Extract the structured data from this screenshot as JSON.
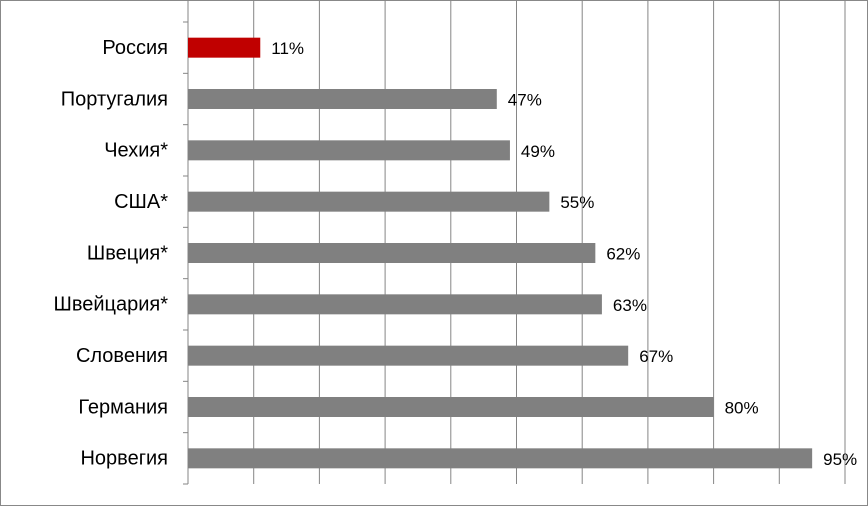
{
  "chart_data": {
    "type": "bar",
    "orientation": "horizontal",
    "categories": [
      "Россия",
      "Португалия",
      "Чехия*",
      "США*",
      "Швеция*",
      "Швейцария*",
      "Словения",
      "Германия",
      "Норвегия"
    ],
    "values": [
      11,
      47,
      49,
      55,
      62,
      63,
      67,
      80,
      95
    ],
    "value_labels": [
      "11%",
      "47%",
      "49%",
      "55%",
      "62%",
      "63%",
      "67%",
      "80%",
      "95%"
    ],
    "colors": [
      "#c00000",
      "#808080",
      "#808080",
      "#808080",
      "#808080",
      "#808080",
      "#808080",
      "#808080",
      "#808080"
    ],
    "xlim": [
      0,
      100
    ],
    "xticks": [
      0,
      10,
      20,
      30,
      40,
      50,
      60,
      70,
      80,
      90,
      100
    ],
    "grid": true
  }
}
